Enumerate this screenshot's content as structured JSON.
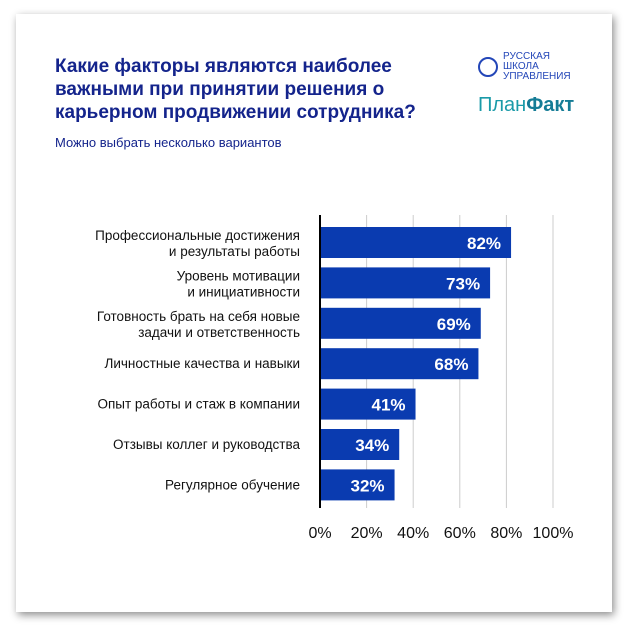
{
  "title": "Какие факторы являются наиболее важными при принятии решения о карьерном продвижении сотрудника?",
  "subtitle": "Можно выбрать несколько вариантов",
  "logos": {
    "school": "РУССКАЯ ШКОЛА УПРАВЛЕНИЯ",
    "planfakt_a": "План",
    "planfakt_b": "Факт"
  },
  "colors": {
    "bar": "#0a3bb0",
    "title": "#14248c"
  },
  "chart_data": {
    "type": "bar",
    "orientation": "horizontal",
    "categories": [
      [
        "Профессиональные достижения",
        "и результаты работы"
      ],
      [
        "Уровень мотивации",
        "и инициативности"
      ],
      [
        "Готовность брать на себя новые",
        "задачи и ответственность"
      ],
      [
        "Личностные качества и навыки"
      ],
      [
        "Опыт работы и стаж в компании"
      ],
      [
        "Отзывы коллег и руководства"
      ],
      [
        "Регулярное обучение"
      ]
    ],
    "values": [
      82,
      73,
      69,
      68,
      41,
      34,
      32
    ],
    "data_labels": [
      "82%",
      "73%",
      "69%",
      "68%",
      "41%",
      "34%",
      "32%"
    ],
    "xlim": [
      0,
      100
    ],
    "xticks": [
      "0%",
      "20%",
      "40%",
      "60%",
      "80%",
      "100%"
    ],
    "grid": true
  }
}
